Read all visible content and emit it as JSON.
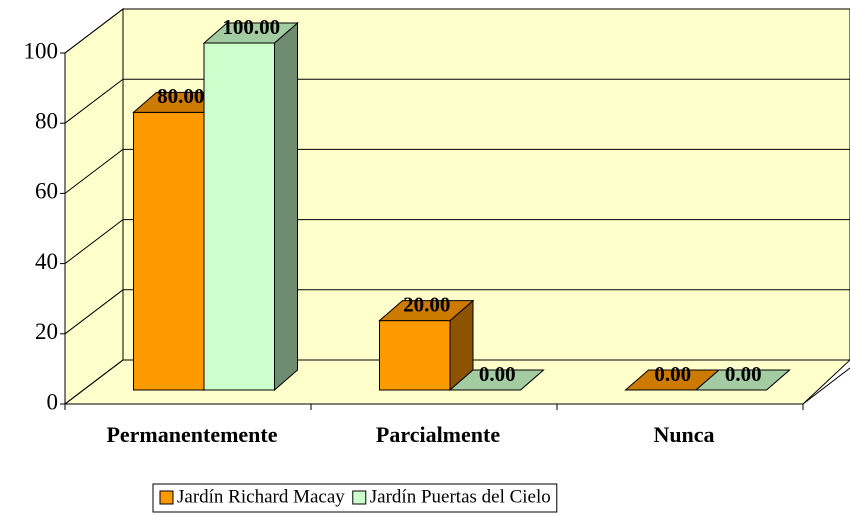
{
  "chart_data": {
    "type": "bar3d",
    "categories": [
      "Permanentemente",
      "Parcialmente",
      "Nunca"
    ],
    "series": [
      {
        "name": "Jardín Richard Macay",
        "color": "#ff9900",
        "values": [
          80,
          20,
          0
        ],
        "value_labels": [
          "80.00",
          "20.00",
          "0.00"
        ]
      },
      {
        "name": "Jardín Puertas del Cielo",
        "color": "#ccffcc",
        "values": [
          100,
          0,
          0
        ],
        "value_labels": [
          "100.00",
          "0.00",
          "0.00"
        ]
      }
    ],
    "ylim": [
      0,
      100
    ],
    "yticks": [
      0,
      20,
      40,
      60,
      80,
      100
    ],
    "grid": true,
    "legend": "bottom"
  }
}
